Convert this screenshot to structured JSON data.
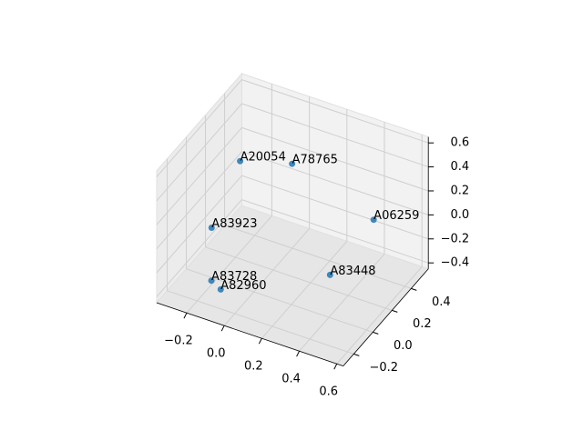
{
  "chart_data": {
    "type": "scatter3d",
    "series": [
      {
        "color": "#1f77b4",
        "labels": [
          "A20054",
          "A78765",
          "A06259",
          "A83923",
          "A83728",
          "A82960",
          "A83448"
        ],
        "x": [
          -0.16,
          0.02,
          0.47,
          -0.21,
          -0.15,
          -0.08,
          0.36
        ],
        "y": [
          0.17,
          0.36,
          0.33,
          -0.03,
          -0.15,
          -0.19,
          0.09
        ],
        "z": [
          0.4,
          0.3,
          0.1,
          0.0,
          -0.3,
          -0.3,
          -0.2
        ]
      }
    ],
    "xlim": [
      -0.36,
      0.634
    ],
    "ylim": [
      -0.31,
      0.58
    ],
    "zlim": [
      -0.45,
      0.65
    ],
    "xticks": [
      {
        "value": -0.2,
        "label": "−0.2"
      },
      {
        "value": 0,
        "label": "0.0"
      },
      0.2,
      0.4,
      0.6
    ],
    "yticks": [
      {
        "value": -0.2,
        "label": "−0.2"
      },
      {
        "value": 0,
        "label": "0.0"
      },
      0.2,
      0.4
    ],
    "zticks": [
      {
        "value": -0.4,
        "label": "−0.4"
      },
      {
        "value": -0.2,
        "label": "−0.2"
      },
      {
        "value": 0,
        "label": "0.0"
      },
      0.2,
      0.4,
      0.6
    ],
    "grid": true
  }
}
